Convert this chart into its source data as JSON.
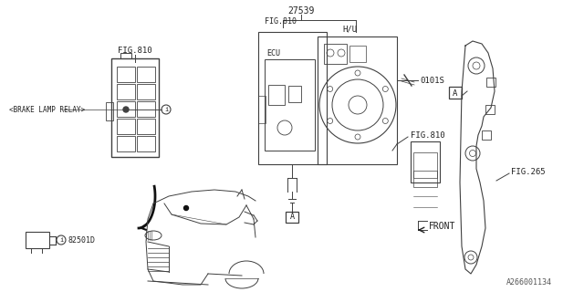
{
  "bg_color": "#ffffff",
  "line_color": "#404040",
  "text_color": "#222222",
  "part_number_top": "27539",
  "label_hu": "H/U",
  "label_ecu": "ECU",
  "label_0101s": "0101S",
  "label_fig810_top": "FIG.810",
  "label_fig810_mid": "FIG.810",
  "label_fig265": "FIG.265",
  "label_brake_relay": "<BRAKE LAMP RELAY>",
  "label_i1": "i",
  "label_82501d": "82501D",
  "label_front": "FRONT",
  "label_a1": "A",
  "label_a2": "A",
  "footnote": "A266001134",
  "fig_width": 6.4,
  "fig_height": 3.2
}
